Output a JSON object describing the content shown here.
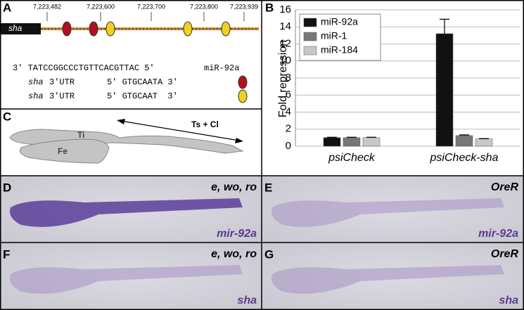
{
  "panel_a": {
    "label": "A",
    "gene": "sha",
    "coordinates": [
      "7,223,482",
      "7,223,600",
      "7,223,700",
      "7,223,800",
      "7,223,939"
    ],
    "mirna_seq": "3' TATCCGGCCCTGTTCACGTTAC 5'",
    "mirna_name": "miR-92a",
    "sites": [
      {
        "gene": "sha",
        "utr": "3'UTR",
        "seq": "5' GTGCAATA 3'"
      },
      {
        "gene": "sha",
        "utr": "3'UTR",
        "seq": "5' GTGCAAT  3'"
      }
    ]
  },
  "chart_data": {
    "type": "bar",
    "panel_label": "B",
    "y_label": "Fold repression",
    "categories": [
      "psiCheck",
      "psiCheck-sha"
    ],
    "series": [
      {
        "name": "miR-92a",
        "color": "#111111",
        "values": [
          1.0,
          13.2
        ],
        "errors": [
          0.05,
          1.7
        ]
      },
      {
        "name": "miR-1",
        "color": "#777777",
        "values": [
          1.0,
          1.25
        ],
        "errors": [
          0.05,
          0.08
        ]
      },
      {
        "name": "miR-184",
        "color": "#c8c8c8",
        "values": [
          1.0,
          0.85
        ],
        "errors": [
          0.05,
          0.05
        ]
      }
    ],
    "ylim": [
      0,
      16
    ],
    "yticks": [
      0,
      2,
      4,
      6,
      8,
      10,
      12,
      14,
      16
    ],
    "grid": true,
    "legend": "top-left"
  },
  "panel_c": {
    "label": "C",
    "tibia": "Ti",
    "femur": "Fe",
    "arrow_label": "Ts + Cl"
  },
  "photos": [
    {
      "label": "D",
      "genotype": "e, wo, ro",
      "probe": "mir-92a"
    },
    {
      "label": "E",
      "genotype": "OreR",
      "probe": "mir-92a"
    },
    {
      "label": "F",
      "genotype": "e, wo, ro",
      "probe": "sha"
    },
    {
      "label": "G",
      "genotype": "OreR",
      "probe": "sha"
    }
  ]
}
